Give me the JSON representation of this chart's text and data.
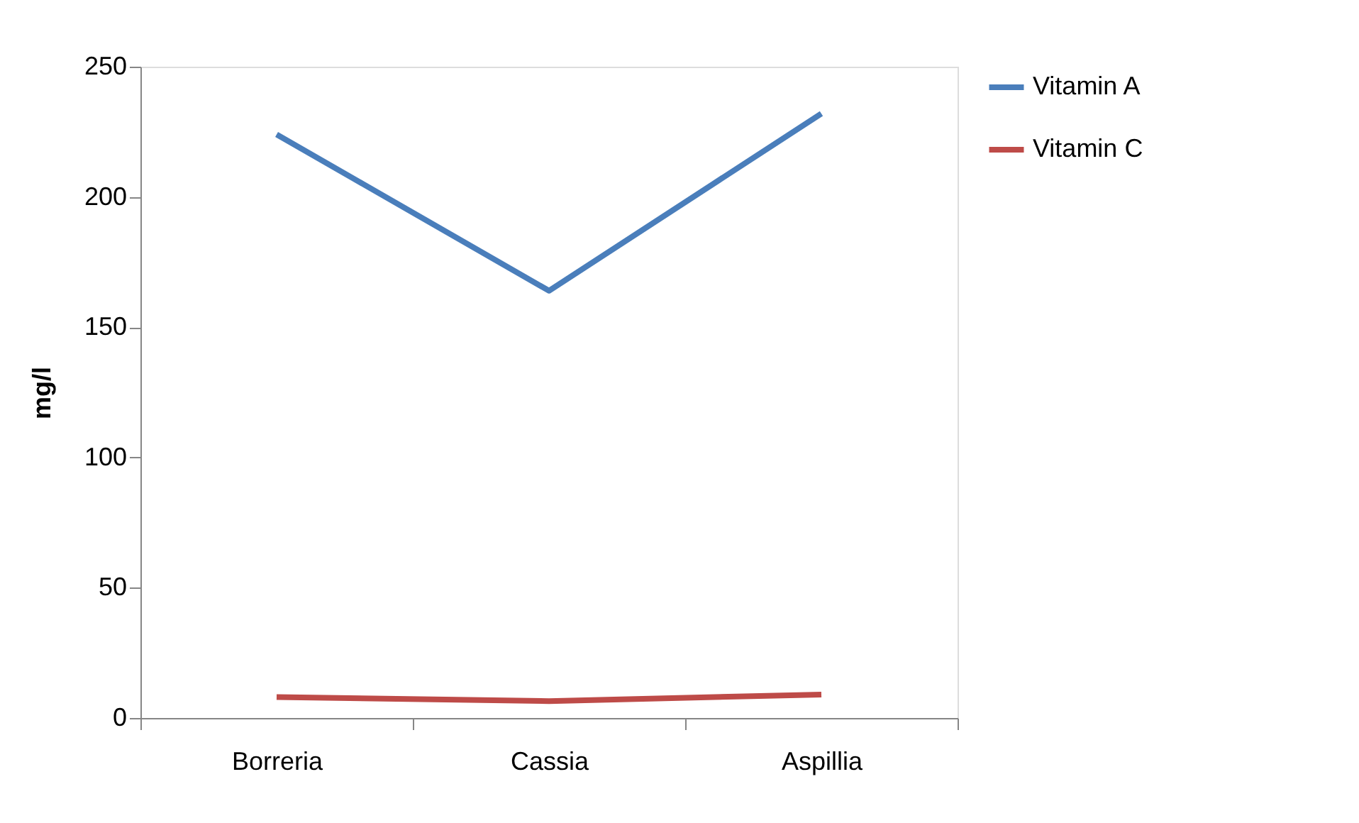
{
  "chart_data": {
    "type": "line",
    "ylabel": "mg/l",
    "categories": [
      "Borreria",
      "Cassia",
      "Aspillia"
    ],
    "series": [
      {
        "name": "Vitamin A",
        "color": "#4a7ebb",
        "values": [
          224,
          164,
          232
        ]
      },
      {
        "name": "Vitamin C",
        "color": "#be4b48",
        "values": [
          8,
          6.5,
          9
        ]
      }
    ],
    "ylim": [
      0,
      250
    ],
    "yticks": [
      0,
      50,
      100,
      150,
      200,
      250
    ],
    "grid": false,
    "legend": "right",
    "marker": "none",
    "line_style": "solid"
  }
}
